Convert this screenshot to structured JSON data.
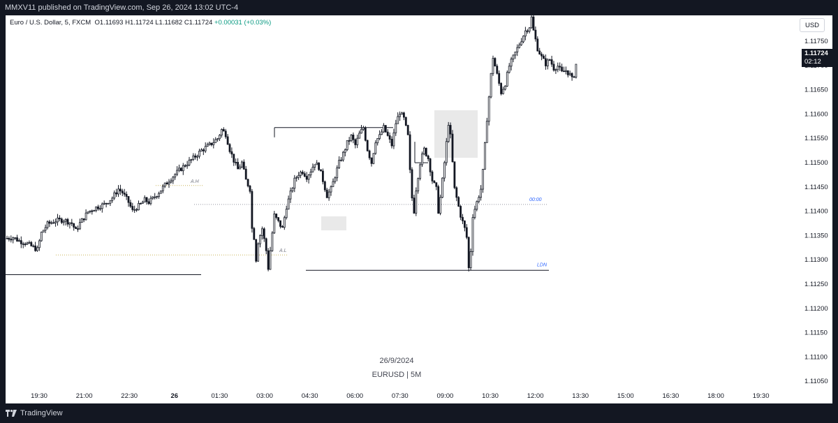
{
  "header": {
    "published": "MMXV11 published on TradingView.com, Sep 26, 2024 13:02 UTC-4"
  },
  "legend": {
    "symbol": "Euro / U.S. Dollar, 5, FXCM",
    "open": "O1.11693",
    "high": "H1.11724",
    "low": "L1.11682",
    "close": "C1.11724",
    "change": "+0.00031 (+0.03%)"
  },
  "currency": "USD",
  "price_tag": {
    "price": "1.11724",
    "countdown": "02:12"
  },
  "watermark": {
    "date": "26/9/2024",
    "pair": "EURUSD | 5M"
  },
  "footer": {
    "brand": "TradingView"
  },
  "colors": {
    "background": "#ffffff",
    "candle": "#131722",
    "frame": "#131722",
    "level_label": "#2962ff",
    "session_label": "#787b86",
    "box": "#e0e0e0"
  },
  "chart_data": {
    "type": "candlestick",
    "title": "",
    "ylim": [
      1.1102,
      1.1183
    ],
    "y_ticks": [
      "1.11750",
      "1.11700",
      "1.11650",
      "1.11600",
      "1.11550",
      "1.11500",
      "1.11450",
      "1.11400",
      "1.11350",
      "1.11300",
      "1.11250",
      "1.11200",
      "1.11150",
      "1.11100",
      "1.11050"
    ],
    "x_ticks": [
      "19:30",
      "21:00",
      "22:30",
      "26",
      "01:30",
      "03:00",
      "04:30",
      "06:00",
      "07:30",
      "09:00",
      "10:30",
      "12:00",
      "13:30",
      "15:00",
      "16:30",
      "18:00",
      "19:30"
    ],
    "close_path": [
      [
        0,
        1.11328
      ],
      [
        3,
        1.1133
      ],
      [
        6,
        1.11322
      ],
      [
        9,
        1.11318
      ],
      [
        12,
        1.1131
      ],
      [
        15,
        1.11302
      ],
      [
        17,
        1.1134
      ],
      [
        20,
        1.1136
      ],
      [
        24,
        1.11368
      ],
      [
        28,
        1.1137
      ],
      [
        32,
        1.11362
      ],
      [
        34,
        1.11345
      ],
      [
        36,
        1.11362
      ],
      [
        40,
        1.11388
      ],
      [
        44,
        1.11398
      ],
      [
        48,
        1.11405
      ],
      [
        52,
        1.1142
      ],
      [
        55,
        1.1144
      ],
      [
        57,
        1.11432
      ],
      [
        60,
        1.1141
      ],
      [
        62,
        1.1139
      ],
      [
        64,
        1.11398
      ],
      [
        66,
        1.11405
      ],
      [
        68,
        1.11415
      ],
      [
        70,
        1.1141
      ],
      [
        72,
        1.11418
      ],
      [
        76,
        1.11438
      ],
      [
        80,
        1.1146
      ],
      [
        84,
        1.11478
      ],
      [
        88,
        1.11495
      ],
      [
        92,
        1.1151
      ],
      [
        96,
        1.11528
      ],
      [
        100,
        1.1154
      ],
      [
        104,
        1.11555
      ],
      [
        106,
        1.11575
      ],
      [
        108,
        1.11565
      ],
      [
        110,
        1.1153
      ],
      [
        112,
        1.11505
      ],
      [
        114,
        1.11485
      ],
      [
        116,
        1.115
      ],
      [
        118,
        1.1146
      ],
      [
        120,
        1.1144
      ],
      [
        121,
        1.1135
      ],
      [
        122,
        1.1133
      ],
      [
        123,
        1.1128
      ],
      [
        124,
        1.1132
      ],
      [
        126,
        1.1135
      ],
      [
        128,
        1.113
      ],
      [
        129,
        1.1126
      ],
      [
        130,
        1.113
      ],
      [
        132,
        1.1138
      ],
      [
        134,
        1.11365
      ],
      [
        136,
        1.1135
      ],
      [
        138,
        1.114
      ],
      [
        140,
        1.1143
      ],
      [
        142,
        1.1146
      ],
      [
        144,
        1.11475
      ],
      [
        146,
        1.1148
      ],
      [
        148,
        1.11468
      ],
      [
        150,
        1.11482
      ],
      [
        152,
        1.115
      ],
      [
        154,
        1.1149
      ],
      [
        156,
        1.1146
      ],
      [
        158,
        1.11425
      ],
      [
        160,
        1.1144
      ],
      [
        162,
        1.1147
      ],
      [
        164,
        1.115
      ],
      [
        166,
        1.1152
      ],
      [
        168,
        1.11545
      ],
      [
        170,
        1.1156
      ],
      [
        172,
        1.1154
      ],
      [
        174,
        1.11565
      ],
      [
        176,
        1.1158
      ],
      [
        178,
        1.1153
      ],
      [
        180,
        1.115
      ],
      [
        182,
        1.1155
      ],
      [
        184,
        1.1156
      ],
      [
        186,
        1.1158
      ],
      [
        188,
        1.1156
      ],
      [
        190,
        1.1154
      ],
      [
        192,
        1.1159
      ],
      [
        194,
        1.11615
      ],
      [
        196,
        1.116
      ],
      [
        198,
        1.1156
      ],
      [
        199,
        1.1148
      ],
      [
        200,
        1.1142
      ],
      [
        201,
        1.1139
      ],
      [
        202,
        1.1144
      ],
      [
        204,
        1.115
      ],
      [
        206,
        1.1153
      ],
      [
        208,
        1.1151
      ],
      [
        210,
        1.1146
      ],
      [
        212,
        1.1144
      ],
      [
        213,
        1.1139
      ],
      [
        214,
        1.1142
      ],
      [
        216,
        1.115
      ],
      [
        218,
        1.1159
      ],
      [
        219,
        1.1156
      ],
      [
        220,
        1.115
      ],
      [
        221,
        1.1144
      ],
      [
        222,
        1.1142
      ],
      [
        223,
        1.114
      ],
      [
        224,
        1.1138
      ],
      [
        226,
        1.1135
      ],
      [
        227,
        1.1133
      ],
      [
        228,
        1.1126
      ],
      [
        229,
        1.113
      ],
      [
        230,
        1.1138
      ],
      [
        232,
        1.1141
      ],
      [
        234,
        1.1144
      ],
      [
        235,
        1.1148
      ],
      [
        236,
        1.1154
      ],
      [
        237,
        1.116
      ],
      [
        238,
        1.1165
      ],
      [
        239,
        1.117
      ],
      [
        240,
        1.1174
      ],
      [
        242,
        1.117
      ],
      [
        243,
        1.1168
      ],
      [
        244,
        1.1166
      ],
      [
        246,
        1.1168
      ],
      [
        248,
        1.1172
      ],
      [
        250,
        1.1174
      ],
      [
        252,
        1.1176
      ],
      [
        254,
        1.1178
      ],
      [
        256,
        1.118
      ],
      [
        258,
        1.1181
      ],
      [
        259,
        1.1183
      ],
      [
        260,
        1.118
      ],
      [
        262,
        1.1176
      ],
      [
        264,
        1.1174
      ],
      [
        266,
        1.11725
      ],
      [
        268,
        1.11735
      ],
      [
        270,
        1.11715
      ],
      [
        272,
        1.1172
      ],
      [
        274,
        1.11705
      ],
      [
        276,
        1.1171
      ],
      [
        278,
        1.117
      ],
      [
        279,
        1.1169
      ],
      [
        280,
        1.117
      ],
      [
        281,
        1.11724
      ]
    ],
    "annotations": {
      "asia_high": {
        "label": "A.H",
        "price": 1.11448
      },
      "asia_low": {
        "label": "A.L",
        "price": 1.1129
      },
      "midnight_open": {
        "label": "00:00",
        "price": 1.11405
      },
      "london_low": {
        "label": "LDN",
        "price": 1.11255
      },
      "swing_high_line": {
        "price": 1.1158
      },
      "prev_low_line": {
        "price": 1.11245
      },
      "mid_line": {
        "price": 1.115
      }
    }
  }
}
